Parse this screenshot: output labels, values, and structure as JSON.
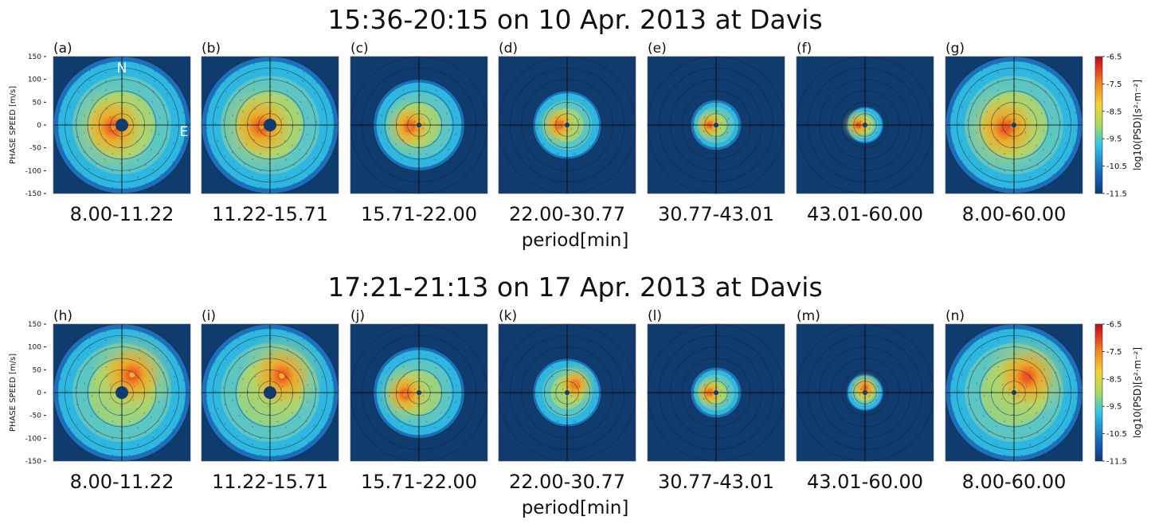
{
  "chart_data": [
    {
      "type": "heatmap",
      "title": "15:36-20:15 on 10 Apr. 2013 at Davis",
      "ylabel": "PHASE SPEED [m/s]",
      "xlabel": "period[min]",
      "ylim": [
        -150,
        150
      ],
      "xlim": [
        -150,
        150
      ],
      "yticks": [
        "150",
        "100",
        "50",
        "0",
        "-50",
        "-100",
        "-150"
      ],
      "direction_labels": {
        "north": "N",
        "east": "E"
      },
      "colorbar": {
        "title": "log10(PSD)[s²·m⁻²]",
        "range": [
          -11.5,
          -6.5
        ],
        "ticks": [
          "-6.5",
          "-7.5",
          "-8.5",
          "-9.5",
          "-10.5",
          "-11.5"
        ]
      },
      "panels": [
        {
          "label": "(a)",
          "period": "8.00-11.22",
          "max_speed": 150,
          "peak_direction_deg": 255,
          "peak_speed": 20,
          "peak_log10_psd": -7.8
        },
        {
          "label": "(b)",
          "period": "11.22-15.71",
          "max_speed": 150,
          "peak_direction_deg": 260,
          "peak_speed": 20,
          "peak_log10_psd": -7.8
        },
        {
          "label": "(c)",
          "period": "15.71-22.00",
          "max_speed": 100,
          "peak_direction_deg": 260,
          "peak_speed": 20,
          "peak_log10_psd": -7.5
        },
        {
          "label": "(d)",
          "period": "22.00-30.77",
          "max_speed": 75,
          "peak_direction_deg": 270,
          "peak_speed": 18,
          "peak_log10_psd": -7.4
        },
        {
          "label": "(e)",
          "period": "30.77-43.01",
          "max_speed": 55,
          "peak_direction_deg": 270,
          "peak_speed": 15,
          "peak_log10_psd": -7.3
        },
        {
          "label": "(f)",
          "period": "43.01-60.00",
          "max_speed": 40,
          "peak_direction_deg": 270,
          "peak_speed": 15,
          "peak_log10_psd": -7.2
        },
        {
          "label": "(g)",
          "period": "8.00-60.00",
          "max_speed": 150,
          "peak_direction_deg": 250,
          "peak_speed": 20,
          "peak_log10_psd": -7.2
        }
      ]
    },
    {
      "type": "heatmap",
      "title": "17:21-21:13 on 17 Apr. 2013 at Davis",
      "ylabel": "PHASE SPEED [m/s]",
      "xlabel": "period[min]",
      "ylim": [
        -150,
        150
      ],
      "xlim": [
        -150,
        150
      ],
      "yticks": [
        "150",
        "100",
        "50",
        "0",
        "-50",
        "-100",
        "-150"
      ],
      "colorbar": {
        "title": "log10(PSD)[s²·m⁻²]",
        "range": [
          -11.5,
          -6.5
        ],
        "ticks": [
          "-6.5",
          "-7.5",
          "-8.5",
          "-9.5",
          "-10.5",
          "-11.5"
        ]
      },
      "panels": [
        {
          "label": "(h)",
          "period": "8.00-11.22",
          "max_speed": 150,
          "peak_direction_deg": 30,
          "peak_speed": 45,
          "peak_log10_psd": -8.5
        },
        {
          "label": "(i)",
          "period": "11.22-15.71",
          "max_speed": 150,
          "peak_direction_deg": 35,
          "peak_speed": 45,
          "peak_log10_psd": -8.2
        },
        {
          "label": "(j)",
          "period": "15.71-22.00",
          "max_speed": 100,
          "peak_direction_deg": 265,
          "peak_speed": 30,
          "peak_log10_psd": -7.6
        },
        {
          "label": "(k)",
          "period": "22.00-30.77",
          "max_speed": 75,
          "peak_direction_deg": 45,
          "peak_speed": 25,
          "peak_log10_psd": -7.6
        },
        {
          "label": "(l)",
          "period": "30.77-43.01",
          "max_speed": 55,
          "peak_direction_deg": 270,
          "peak_speed": 15,
          "peak_log10_psd": -7.4
        },
        {
          "label": "(m)",
          "period": "43.01-60.00",
          "max_speed": 40,
          "peak_direction_deg": 0,
          "peak_speed": 10,
          "peak_log10_psd": -7.4
        },
        {
          "label": "(n)",
          "period": "8.00-60.00",
          "max_speed": 150,
          "peak_direction_deg": 40,
          "peak_speed": 45,
          "peak_log10_psd": -7.2
        }
      ]
    }
  ]
}
